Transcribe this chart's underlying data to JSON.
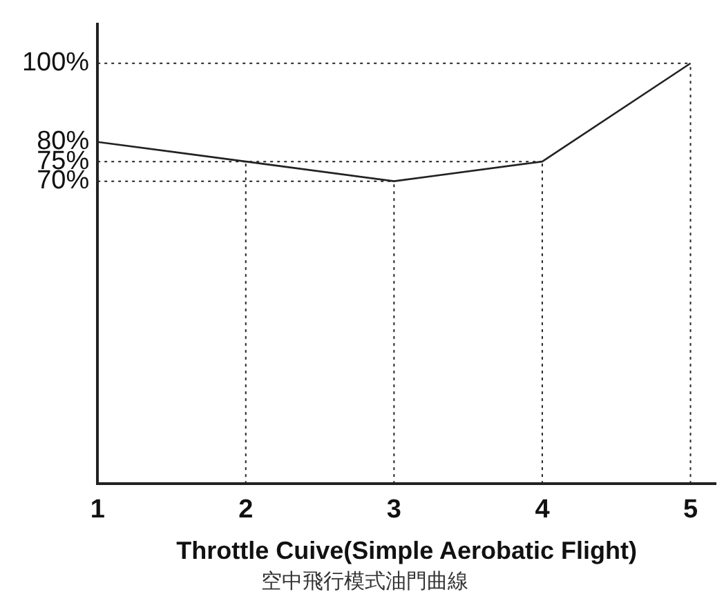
{
  "chart_data": {
    "type": "line",
    "xlabel": "Throttle Cuive(Simple Aerobatic Flight)",
    "subtitle": "空中飛行模式油門曲線",
    "x": [
      1,
      2,
      3,
      4,
      5
    ],
    "series": [
      {
        "color": "#222222",
        "values": [
          80,
          75,
          70,
          75,
          100
        ]
      }
    ],
    "xlim": [
      1,
      5.17
    ],
    "xticks": [
      1,
      2,
      3,
      4,
      5
    ],
    "ylim": [
      -7,
      110
    ],
    "yticks": [
      {
        "value": 70,
        "label": "70%"
      },
      {
        "value": 75,
        "label": "75%"
      },
      {
        "value": 80,
        "label": "80%"
      },
      {
        "value": 100,
        "label": "100%"
      }
    ],
    "ref_lines": [
      {
        "axis": "y",
        "value": 100,
        "line_style": "dotted"
      },
      {
        "axis": "y",
        "value": 75,
        "line_style": "dotted"
      },
      {
        "axis": "y",
        "value": 70,
        "line_style": "dotted"
      },
      {
        "axis": "x",
        "value": 2,
        "line_style": "dotted"
      },
      {
        "axis": "x",
        "value": 3,
        "line_style": "dotted"
      },
      {
        "axis": "x",
        "value": 4,
        "line_style": "dotted"
      },
      {
        "axis": "x",
        "value": 5,
        "line_style": "dotted"
      }
    ],
    "grid": false,
    "legend": false,
    "marker": "none",
    "line_style": "solid"
  }
}
